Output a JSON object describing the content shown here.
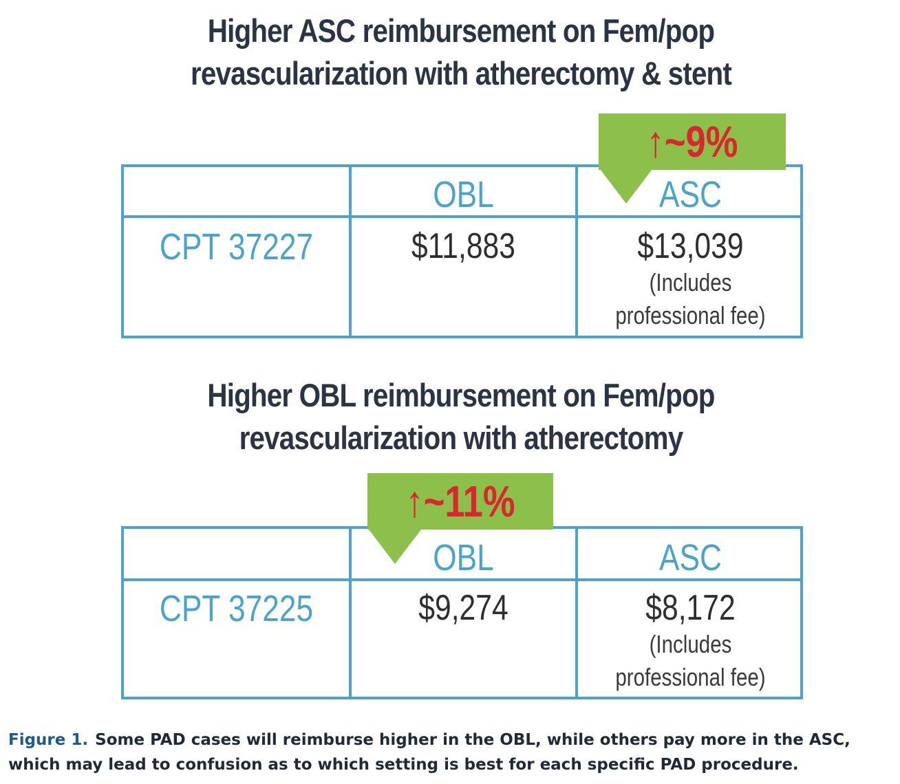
{
  "figure": {
    "panels": [
      {
        "heading_line1": "Higher ASC reimbursement on Fem/pop",
        "heading_line2": "revascularization with atherectomy & stent",
        "badge": "↑~9%",
        "col_obl": "OBL",
        "col_asc": "ASC",
        "cpt": "CPT 37227",
        "obl_value": "$11,883",
        "asc_value": "$13,039",
        "asc_note_line1": "(Includes",
        "asc_note_line2": "professional fee)"
      },
      {
        "heading_line1": "Higher OBL reimbursement on Fem/pop",
        "heading_line2": "revascularization with atherectomy",
        "badge": "↑~11%",
        "col_obl": "OBL",
        "col_asc": "ASC",
        "cpt": "CPT 37225",
        "obl_value": "$9,274",
        "asc_value": "$8,172",
        "asc_note_line1": "(Includes",
        "asc_note_line2": "professional fee)"
      }
    ],
    "caption_label": "Figure 1.",
    "caption_text": "Some PAD cases will reimburse higher in the OBL, while others pay more in the ASC, which may lead to confusion as to which setting is best for each specific PAD procedure.",
    "colors": {
      "table_blue": "#4aa3cc",
      "badge_green": "#8dc04a",
      "badge_red": "#d8272e",
      "heading_dark": "#2b3444",
      "caption_label_blue": "#1e5a8a"
    }
  }
}
